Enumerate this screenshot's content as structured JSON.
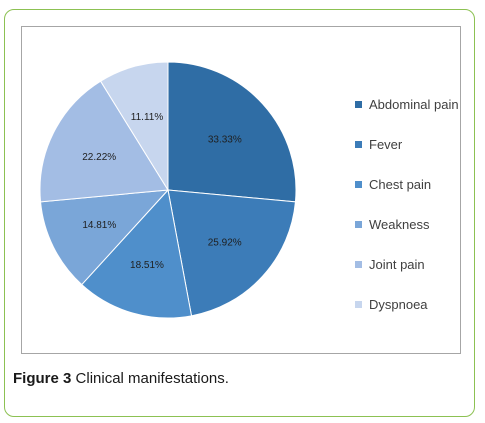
{
  "figure": {
    "caption_prefix": "Figure 3",
    "caption_text": " Clinical manifestations."
  },
  "chart_data": {
    "type": "pie",
    "categories": [
      "Abdominal pain",
      "Fever",
      "Chest pain",
      "Weakness",
      "Joint pain",
      "Dyspnoea"
    ],
    "values": [
      33.33,
      25.92,
      18.51,
      14.81,
      22.22,
      11.11
    ],
    "data_labels": [
      "33.33%",
      "25.92%",
      "18.51%",
      "14.81%",
      "22.22%",
      "11.11%"
    ],
    "colors": [
      "#2f6da5",
      "#3c7cb8",
      "#4f8fcb",
      "#7aa6d8",
      "#a3bde4",
      "#c7d6ee"
    ],
    "legend_position": "right",
    "start_angle_deg": 0,
    "direction": "clockwise"
  }
}
